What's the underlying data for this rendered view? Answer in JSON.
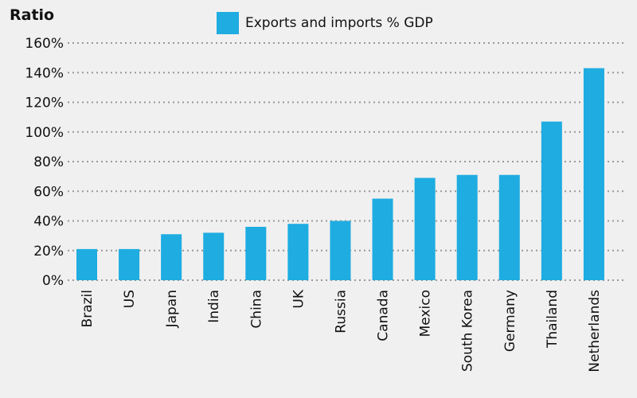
{
  "chart_data": {
    "type": "bar",
    "title": "",
    "ylabel": "Ratio",
    "xlabel": "",
    "categories": [
      "Brazil",
      "US",
      "Japan",
      "India",
      "China",
      "UK",
      "Russia",
      "Canada",
      "Mexico",
      "South Korea",
      "Germany",
      "Thailand",
      "Netherlands"
    ],
    "series": [
      {
        "name": "Exports and imports % GDP",
        "values": [
          21,
          21,
          31,
          32,
          36,
          38,
          40,
          55,
          69,
          71,
          71,
          107,
          143
        ],
        "color": "#1eace1"
      }
    ],
    "ylim": [
      0,
      160
    ],
    "yticks": [
      0,
      20,
      40,
      60,
      80,
      100,
      120,
      140,
      160
    ],
    "ytick_labels": [
      "0%",
      "20%",
      "40%",
      "60%",
      "80%",
      "100%",
      "120%",
      "140%",
      "160%"
    ],
    "grid": true,
    "legend_position": "top-center"
  }
}
